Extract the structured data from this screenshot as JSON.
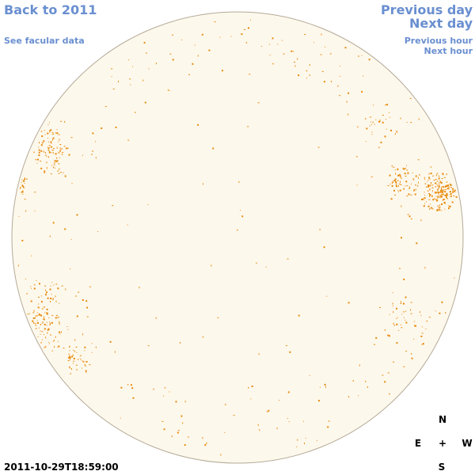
{
  "nav": {
    "back_label": "Back to 2011",
    "facular_label": "See facular data",
    "prev_day_label": "Previous day",
    "next_day_label": "Next day",
    "prev_hour_label": "Previous hour",
    "next_hour_label": "Next hour"
  },
  "timestamp": "2011-10-29T18:59:00",
  "compass": {
    "north": "N",
    "east": "E",
    "center": "+",
    "west": "W",
    "south": "S"
  },
  "colors": {
    "disk_fill": "#fdf8ec",
    "disk_edge": "#b5aa98",
    "feature": "#e88a0c",
    "link": "#6a8fd0"
  }
}
